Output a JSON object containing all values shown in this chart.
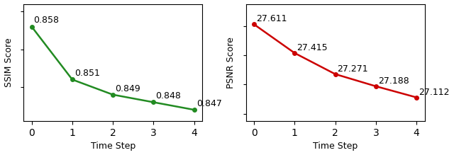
{
  "x": [
    0,
    1,
    2,
    3,
    4
  ],
  "ssim_values": [
    0.858,
    0.851,
    0.849,
    0.848,
    0.847
  ],
  "psnr_values": [
    27.611,
    27.415,
    27.271,
    27.188,
    27.112
  ],
  "ssim_labels": [
    "0.858",
    "0.851",
    "0.849",
    "0.848",
    "0.847"
  ],
  "psnr_labels": [
    "27.611",
    "27.415",
    "27.271",
    "27.188",
    "27.112"
  ],
  "ssim_color": "#228B22",
  "psnr_color": "#CC0000",
  "ssim_ylabel": "SSIM Score",
  "psnr_ylabel": "PSNR Score",
  "xlabel": "Time Step",
  "marker": "o",
  "markersize": 4,
  "linewidth": 1.8,
  "annotation_fontsize": 9
}
